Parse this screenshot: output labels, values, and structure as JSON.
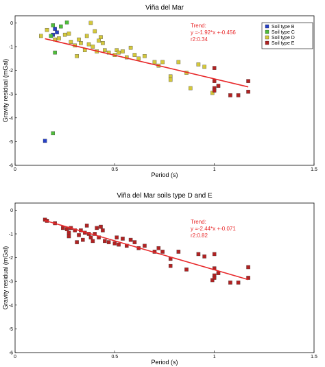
{
  "chart_data": [
    {
      "type": "scatter",
      "title": "Viña del Mar",
      "xlabel": "Period (s)",
      "ylabel": "Gravity residual (mGal)",
      "xlim": [
        0,
        1.5
      ],
      "ylim": [
        -6,
        0.3
      ],
      "xticks": [
        "0",
        "0.5",
        "1",
        "1.5"
      ],
      "yticks": [
        "0",
        "-1",
        "-2",
        "-3",
        "-4",
        "-5",
        "-6"
      ],
      "grid": false,
      "legend_position": "top-right",
      "trend_lines": [
        "Trend:",
        "y =-1.92*x +-0.456",
        "r2:0.34"
      ],
      "trend_line": {
        "x": [
          0.15,
          1.17
        ],
        "y": [
          -0.667,
          -2.697
        ]
      },
      "series": [
        {
          "name": "Soil type B",
          "color": "#2741c8",
          "points": [
            [
              0.2,
              -0.25
            ],
            [
              0.21,
              -0.4
            ],
            [
              0.19,
              -0.5
            ],
            [
              0.15,
              -4.97
            ]
          ]
        },
        {
          "name": "Soil type C",
          "color": "#4fbf3a",
          "points": [
            [
              0.19,
              -0.1
            ],
            [
              0.23,
              -0.15
            ],
            [
              0.18,
              -0.55
            ],
            [
              0.26,
              0.02
            ],
            [
              0.2,
              -1.25
            ],
            [
              0.19,
              -4.65
            ]
          ]
        },
        {
          "name": "Soil type D",
          "color": "#d4c83a",
          "points": [
            [
              0.13,
              -0.55
            ],
            [
              0.16,
              -0.3
            ],
            [
              0.2,
              -0.7
            ],
            [
              0.22,
              -0.65
            ],
            [
              0.25,
              -0.5
            ],
            [
              0.27,
              -0.45
            ],
            [
              0.28,
              -0.8
            ],
            [
              0.3,
              -0.95
            ],
            [
              0.31,
              -1.4
            ],
            [
              0.32,
              -0.7
            ],
            [
              0.33,
              -0.85
            ],
            [
              0.35,
              -1.15
            ],
            [
              0.36,
              -0.55
            ],
            [
              0.37,
              -0.9
            ],
            [
              0.38,
              -0.0
            ],
            [
              0.39,
              -1.0
            ],
            [
              0.4,
              -0.35
            ],
            [
              0.41,
              -1.2
            ],
            [
              0.42,
              -0.75
            ],
            [
              0.43,
              -0.6
            ],
            [
              0.44,
              -0.85
            ],
            [
              0.45,
              -1.15
            ],
            [
              0.47,
              -1.25
            ],
            [
              0.5,
              -1.35
            ],
            [
              0.51,
              -1.15
            ],
            [
              0.52,
              -1.25
            ],
            [
              0.54,
              -1.2
            ],
            [
              0.56,
              -1.45
            ],
            [
              0.58,
              -1.05
            ],
            [
              0.6,
              -1.35
            ],
            [
              0.62,
              -1.5
            ],
            [
              0.65,
              -1.4
            ],
            [
              0.7,
              -1.65
            ],
            [
              0.72,
              -1.8
            ],
            [
              0.74,
              -1.65
            ],
            [
              0.78,
              -2.25
            ],
            [
              0.78,
              -2.4
            ],
            [
              0.82,
              -1.65
            ],
            [
              0.86,
              -2.1
            ],
            [
              0.88,
              -2.75
            ],
            [
              0.92,
              -1.75
            ],
            [
              0.95,
              -1.85
            ],
            [
              0.99,
              -2.95
            ]
          ]
        },
        {
          "name": "Soil type E",
          "color": "#b22222",
          "points": [
            [
              1.0,
              -1.9
            ],
            [
              1.0,
              -2.45
            ],
            [
              1.0,
              -2.75
            ],
            [
              1.0,
              -2.85
            ],
            [
              1.02,
              -2.65
            ],
            [
              1.08,
              -3.05
            ],
            [
              1.12,
              -3.05
            ],
            [
              1.17,
              -2.45
            ],
            [
              1.17,
              -2.9
            ]
          ]
        }
      ]
    },
    {
      "type": "scatter",
      "title": "Viña del Mar soils type D and E",
      "xlabel": "Period (s)",
      "ylabel": "Gravity residual (mGal)",
      "xlim": [
        0,
        1.5
      ],
      "ylim": [
        -6,
        0.3
      ],
      "xticks": [
        "0",
        "0.5",
        "1",
        "1.5"
      ],
      "yticks": [
        "0",
        "-1",
        "-2",
        "-3",
        "-4",
        "-5",
        "-6"
      ],
      "grid": false,
      "trend_lines": [
        "Trend:",
        "y =-2.44*x +-0.071",
        "r2:0.82"
      ],
      "trend_line": {
        "x": [
          0.15,
          1.17
        ],
        "y": [
          -0.437,
          -2.926
        ]
      },
      "series": [
        {
          "color": "#b22222",
          "points": [
            [
              0.15,
              -0.4
            ],
            [
              0.16,
              -0.45
            ],
            [
              0.2,
              -0.55
            ],
            [
              0.24,
              -0.75
            ],
            [
              0.26,
              -0.8
            ],
            [
              0.27,
              -0.95
            ],
            [
              0.27,
              -1.1
            ],
            [
              0.28,
              -0.75
            ],
            [
              0.3,
              -0.85
            ],
            [
              0.31,
              -1.35
            ],
            [
              0.32,
              -1.05
            ],
            [
              0.33,
              -0.85
            ],
            [
              0.34,
              -1.25
            ],
            [
              0.35,
              -0.95
            ],
            [
              0.36,
              -0.65
            ],
            [
              0.37,
              -1.0
            ],
            [
              0.38,
              -1.15
            ],
            [
              0.39,
              -1.3
            ],
            [
              0.4,
              -1.0
            ],
            [
              0.41,
              -0.75
            ],
            [
              0.42,
              -1.15
            ],
            [
              0.43,
              -0.7
            ],
            [
              0.44,
              -0.85
            ],
            [
              0.45,
              -1.3
            ],
            [
              0.47,
              -1.35
            ],
            [
              0.5,
              -1.4
            ],
            [
              0.51,
              -1.15
            ],
            [
              0.52,
              -1.45
            ],
            [
              0.54,
              -1.2
            ],
            [
              0.56,
              -1.5
            ],
            [
              0.58,
              -1.25
            ],
            [
              0.6,
              -1.35
            ],
            [
              0.62,
              -1.6
            ],
            [
              0.65,
              -1.5
            ],
            [
              0.7,
              -1.75
            ],
            [
              0.72,
              -1.6
            ],
            [
              0.74,
              -1.75
            ],
            [
              0.78,
              -2.05
            ],
            [
              0.78,
              -2.35
            ],
            [
              0.82,
              -1.75
            ],
            [
              0.86,
              -2.5
            ],
            [
              0.92,
              -1.85
            ],
            [
              0.95,
              -1.95
            ],
            [
              0.99,
              -2.95
            ],
            [
              1.0,
              -1.85
            ],
            [
              1.0,
              -2.45
            ],
            [
              1.0,
              -2.75
            ],
            [
              1.0,
              -2.85
            ],
            [
              1.02,
              -2.65
            ],
            [
              1.08,
              -3.05
            ],
            [
              1.12,
              -3.05
            ],
            [
              1.17,
              -2.4
            ],
            [
              1.17,
              -2.85
            ]
          ]
        }
      ]
    }
  ]
}
